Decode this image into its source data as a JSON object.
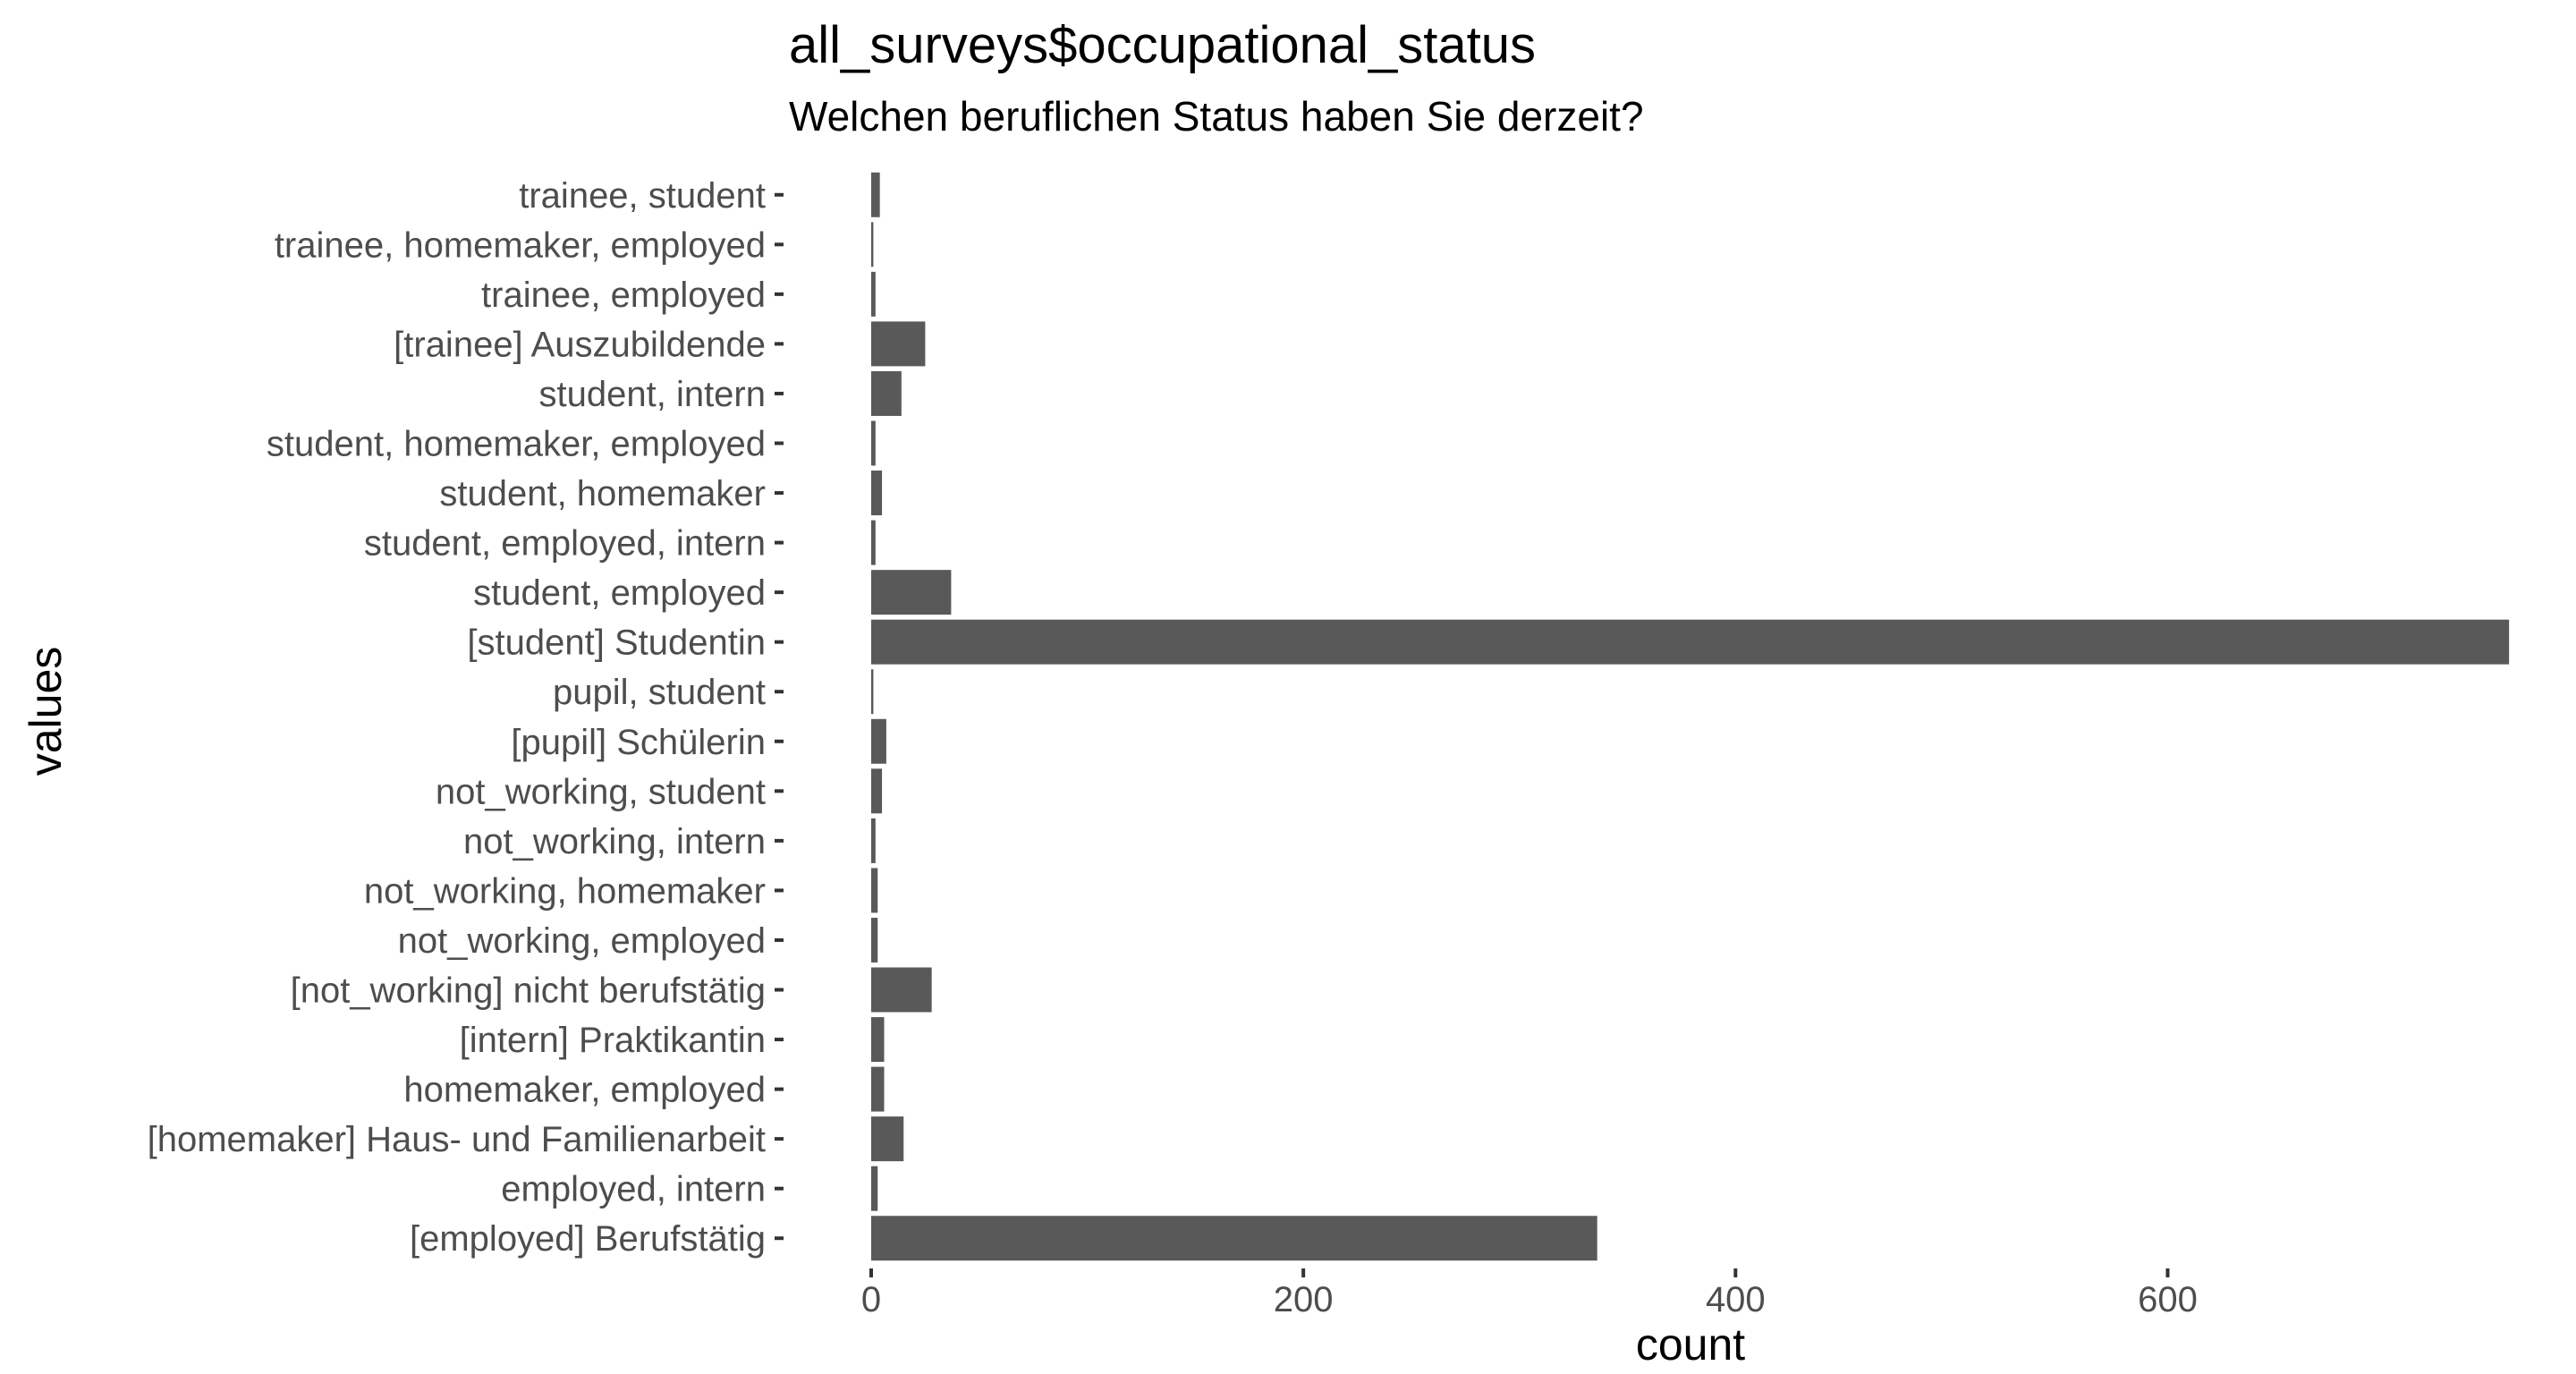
{
  "chart_data": {
    "type": "bar",
    "orientation": "horizontal",
    "title": "all_surveys$occupational_status",
    "subtitle": "Welchen beruflichen Status haben Sie derzeit?",
    "xlabel": "count",
    "ylabel": "values",
    "xlim": [
      0,
      760
    ],
    "x_ticks": [
      0,
      200,
      400,
      600
    ],
    "grid": false,
    "bar_color": "#595959",
    "categories": [
      "trainee, student",
      "trainee, homemaker, employed",
      "trainee, employed",
      "[trainee] Auszubildende",
      "student, intern",
      "student, homemaker, employed",
      "student, homemaker",
      "student, employed, intern",
      "student, employed",
      "[student] Studentin",
      "pupil, student",
      "[pupil] Schülerin",
      "not_working, student",
      "not_working, intern",
      "not_working, homemaker",
      "not_working, employed",
      "[not_working] nicht berufstätig",
      "[intern] Praktikantin",
      "homemaker, employed",
      "[homemaker] Haus- und Familienarbeit ",
      "employed, intern",
      "[employed] Berufstätig"
    ],
    "values": [
      4,
      1,
      2,
      25,
      14,
      2,
      5,
      2,
      37,
      758,
      1,
      7,
      5,
      2,
      3,
      3,
      28,
      6,
      6,
      15,
      3,
      336
    ]
  }
}
